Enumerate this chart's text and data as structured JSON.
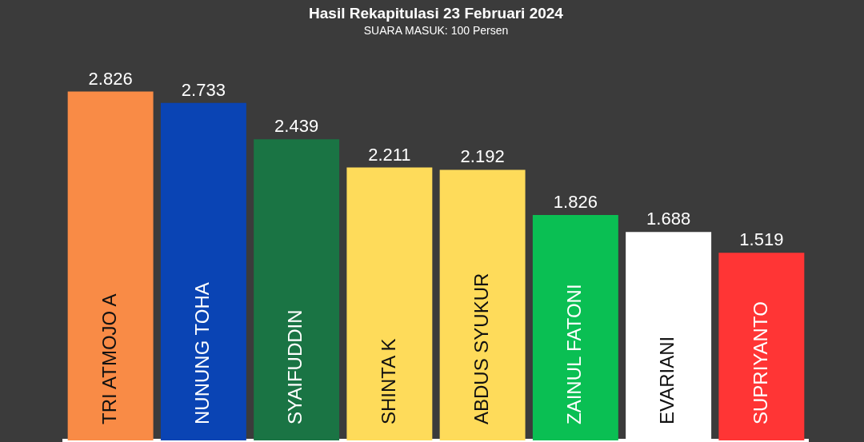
{
  "chart_data": {
    "type": "bar",
    "title": "Hasil Rekapitulasi 23 Februari 2024",
    "subtitle": "SUARA MASUK: 100 Persen",
    "categories": [
      "TRI ATMOJO A",
      "NUNUNG TOHA",
      "SYAIFUDDIN",
      "SHINTA K",
      "ABDUS SYUKUR",
      "ZAINUL FATONI",
      "EVARIANI",
      "SUPRIYANTO"
    ],
    "values": [
      2826,
      2733,
      2439,
      2211,
      2192,
      1826,
      1688,
      1519
    ],
    "value_labels": [
      "2.826",
      "2.733",
      "2.439",
      "2.211",
      "2.192",
      "1.826",
      "1.688",
      "1.519"
    ],
    "colors": [
      "#f98b46",
      "#0a44b4",
      "#1a7444",
      "#fedb5a",
      "#fedb5a",
      "#0abf53",
      "#ffffff",
      "#ff3535"
    ],
    "grid": false,
    "legend": false
  }
}
